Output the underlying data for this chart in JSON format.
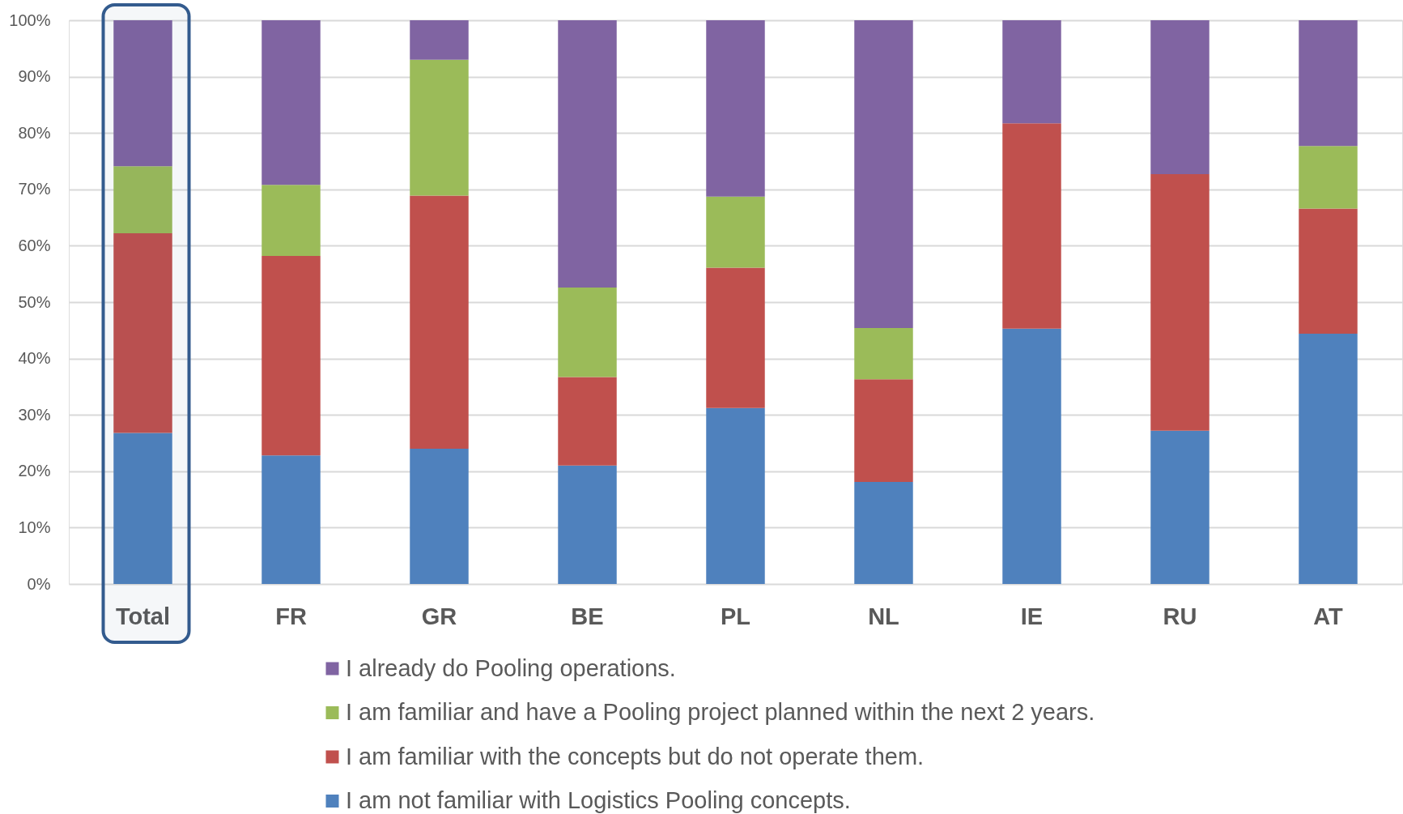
{
  "chart_data": {
    "type": "bar",
    "stacked": true,
    "categories": [
      "Total",
      "FR",
      "GR",
      "BE",
      "PL",
      "NL",
      "IE",
      "RU",
      "AT"
    ],
    "series": [
      {
        "name": "I am not familiar with Logistics Pooling concepts.",
        "color": "#4f81bd",
        "values": [
          26.8,
          22.8,
          24.0,
          21.0,
          31.2,
          18.1,
          45.3,
          27.2,
          44.4
        ]
      },
      {
        "name": "I am familiar with the concepts but do not operate them.",
        "color": "#c0504d",
        "values": [
          35.4,
          35.4,
          44.9,
          15.7,
          24.9,
          18.2,
          36.4,
          45.5,
          22.2
        ]
      },
      {
        "name": "I am familiar and have a Pooling project planned within the next 2 years.",
        "color": "#9bbb59",
        "values": [
          11.9,
          12.6,
          24.1,
          15.9,
          12.6,
          9.1,
          null,
          null,
          11.1
        ]
      },
      {
        "name": "I already do Pooling operations.",
        "color": "#8064a2",
        "values": [
          25.9,
          29.2,
          7.0,
          47.4,
          31.3,
          54.6,
          18.3,
          27.3,
          22.3
        ]
      }
    ],
    "ylim": [
      0,
      100
    ],
    "yticks": [
      {
        "value": 0,
        "label": "0%"
      },
      {
        "value": 10,
        "label": "10%"
      },
      {
        "value": 20,
        "label": "20%"
      },
      {
        "value": 30,
        "label": "30%"
      },
      {
        "value": 40,
        "label": "40%"
      },
      {
        "value": 50,
        "label": "50%"
      },
      {
        "value": 60,
        "label": "60%"
      },
      {
        "value": 70,
        "label": "70%"
      },
      {
        "value": 80,
        "label": "80%"
      },
      {
        "value": 90,
        "label": "90%"
      },
      {
        "value": 100,
        "label": "100%"
      }
    ],
    "grid": "y",
    "legend": "bottom",
    "bands": [
      {
        "axis": "x",
        "from": "Total",
        "to": "Total",
        "color": "#335b8e"
      }
    ]
  }
}
